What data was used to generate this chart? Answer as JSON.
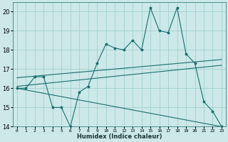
{
  "xlabel": "Humidex (Indice chaleur)",
  "bg_color": "#cce8e8",
  "line_color": "#1a6e6e",
  "x_ticks": [
    0,
    1,
    2,
    3,
    4,
    5,
    6,
    7,
    8,
    9,
    10,
    11,
    12,
    13,
    14,
    15,
    16,
    17,
    18,
    19,
    20,
    21,
    22,
    23
  ],
  "xlim": [
    -0.5,
    23.5
  ],
  "ylim": [
    14,
    20.5
  ],
  "y_ticks": [
    14,
    15,
    16,
    17,
    18,
    19,
    20
  ],
  "grid_color": "#99cccc",
  "series1_x": [
    0,
    1,
    2,
    3,
    4,
    5,
    6,
    7,
    8,
    9,
    10,
    11,
    12,
    13,
    14,
    15,
    16,
    17,
    18,
    19,
    20,
    21,
    22,
    23
  ],
  "series1_y": [
    16.0,
    16.0,
    16.6,
    16.6,
    15.0,
    15.0,
    14.0,
    15.8,
    16.1,
    17.3,
    18.3,
    18.1,
    18.0,
    18.5,
    18.0,
    20.2,
    19.0,
    18.9,
    20.2,
    17.8,
    17.3,
    15.3,
    14.8,
    14.0
  ],
  "series2_x": [
    0,
    23
  ],
  "series2_y": [
    16.1,
    17.2
  ],
  "series3_x": [
    0,
    23
  ],
  "series3_y": [
    16.55,
    17.5
  ],
  "series4_x": [
    0,
    23
  ],
  "series4_y": [
    16.0,
    14.0
  ]
}
